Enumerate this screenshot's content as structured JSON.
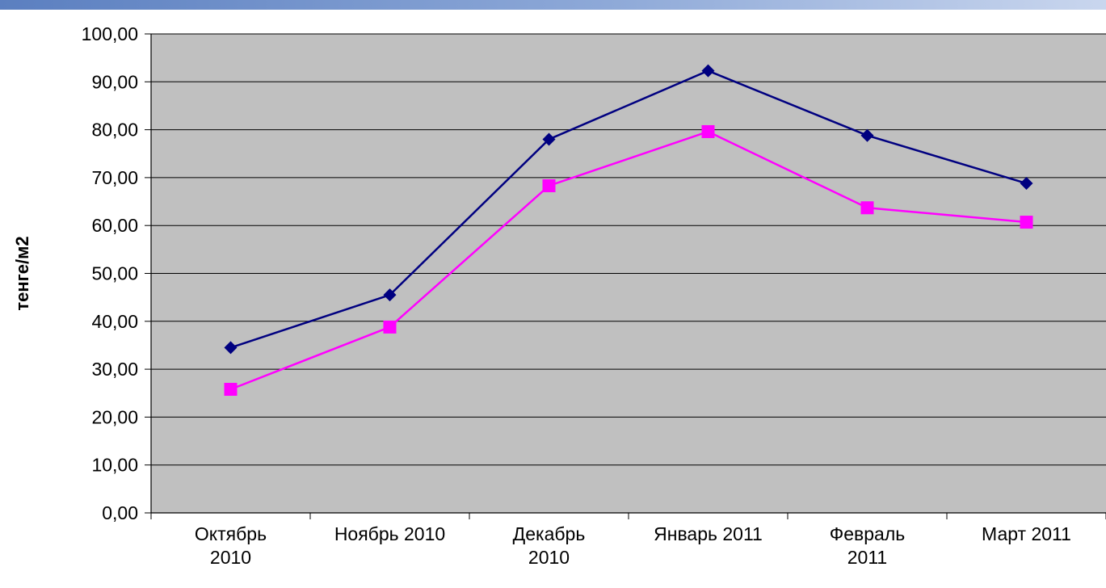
{
  "chart_data": {
    "type": "line",
    "title": "",
    "xlabel": "",
    "ylabel": "тенге/м2",
    "ylim": [
      0,
      100
    ],
    "y_ticks": [
      "0,00",
      "10,00",
      "20,00",
      "30,00",
      "40,00",
      "50,00",
      "60,00",
      "70,00",
      "80,00",
      "90,00",
      "100,00"
    ],
    "categories": [
      [
        "Октябрь",
        "2010"
      ],
      [
        "Ноябрь 2010"
      ],
      [
        "Декабрь",
        "2010"
      ],
      [
        "Январь 2011"
      ],
      [
        "Февраль",
        "2011"
      ],
      [
        "Март 2011"
      ]
    ],
    "series": [
      {
        "values": [
          34.5,
          45.5,
          78.0,
          92.3,
          78.8,
          68.8
        ],
        "color": "#000080",
        "marker": "diamond"
      },
      {
        "values": [
          25.8,
          38.8,
          68.3,
          79.6,
          63.7,
          60.7
        ],
        "color": "#ff00ff",
        "marker": "square"
      }
    ],
    "grid": true,
    "plot_background": "#c0c0c0",
    "legend": "none"
  }
}
